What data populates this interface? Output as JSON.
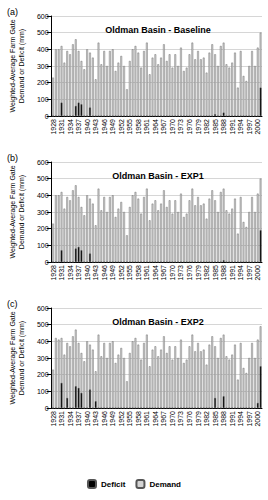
{
  "chart_data": [
    {
      "type": "bar",
      "panel": "(a)",
      "title": "Oldman Basin - Baseline",
      "ylabel": "Weighted-Average Farm Gate Demand or Deficit (mm)",
      "categories": [
        "1928",
        null,
        null,
        "1931",
        null,
        null,
        "1934",
        null,
        null,
        "1937",
        null,
        null,
        "1940",
        null,
        null,
        "1943",
        null,
        null,
        "1946",
        null,
        null,
        "1949",
        null,
        null,
        "1952",
        null,
        null,
        "1955",
        null,
        null,
        "1958",
        null,
        null,
        "1961",
        null,
        null,
        "1964",
        null,
        null,
        "1967",
        null,
        null,
        "1970",
        null,
        null,
        "1973",
        null,
        null,
        "1976",
        null,
        null,
        "1979",
        null,
        null,
        "1982",
        null,
        null,
        "1985",
        null,
        null,
        "1988",
        null,
        null,
        "1991",
        null,
        null,
        "1994",
        null,
        null,
        "1997",
        null,
        null,
        "2000",
        null
      ],
      "series": [
        {
          "name": "Deficit",
          "color": "#000000",
          "values": [
            0,
            0,
            0,
            80,
            0,
            0,
            0,
            0,
            60,
            80,
            70,
            0,
            0,
            50,
            0,
            0,
            0,
            0,
            0,
            0,
            0,
            0,
            0,
            0,
            0,
            0,
            0,
            0,
            0,
            0,
            0,
            0,
            0,
            0,
            0,
            0,
            0,
            0,
            0,
            0,
            0,
            0,
            0,
            0,
            0,
            0,
            0,
            0,
            0,
            0,
            0,
            0,
            0,
            0,
            0,
            0,
            0,
            10,
            0,
            0,
            20,
            0,
            0,
            0,
            0,
            0,
            0,
            0,
            0,
            0,
            0,
            0,
            0,
            170
          ]
        },
        {
          "name": "Demand",
          "color": "#d4d4d4",
          "values": [
            230,
            400,
            400,
            420,
            320,
            390,
            370,
            430,
            460,
            390,
            330,
            280,
            400,
            380,
            350,
            220,
            440,
            310,
            390,
            300,
            390,
            400,
            270,
            320,
            360,
            300,
            160,
            330,
            400,
            420,
            380,
            290,
            390,
            440,
            250,
            350,
            370,
            310,
            350,
            430,
            330,
            370,
            290,
            370,
            300,
            410,
            270,
            290,
            370,
            440,
            340,
            390,
            340,
            350,
            260,
            380,
            430,
            370,
            300,
            420,
            440,
            310,
            290,
            320,
            380,
            170,
            390,
            240,
            210,
            300,
            390,
            300,
            410,
            500
          ]
        }
      ],
      "ylim": [
        0,
        600
      ],
      "yticks": [
        0,
        100,
        200,
        300,
        400,
        500,
        600
      ],
      "grid": true
    },
    {
      "type": "bar",
      "panel": "(b)",
      "title": "Oldman Basin - EXP1",
      "ylabel": "Weighted-Average Farm Gate Demand or Deficit (mm)",
      "categories": [
        "1928",
        null,
        null,
        "1931",
        null,
        null,
        "1934",
        null,
        null,
        "1937",
        null,
        null,
        "1940",
        null,
        null,
        "1943",
        null,
        null,
        "1946",
        null,
        null,
        "1949",
        null,
        null,
        "1952",
        null,
        null,
        "1955",
        null,
        null,
        "1958",
        null,
        null,
        "1961",
        null,
        null,
        "1964",
        null,
        null,
        "1967",
        null,
        null,
        "1970",
        null,
        null,
        "1973",
        null,
        null,
        "1976",
        null,
        null,
        "1979",
        null,
        null,
        "1982",
        null,
        null,
        "1985",
        null,
        null,
        "1988",
        null,
        null,
        "1991",
        null,
        null,
        "1994",
        null,
        null,
        "1997",
        null,
        null,
        "2000",
        null
      ],
      "series": [
        {
          "name": "Deficit",
          "color": "#000000",
          "values": [
            0,
            0,
            0,
            70,
            0,
            0,
            0,
            0,
            80,
            90,
            70,
            0,
            0,
            50,
            0,
            0,
            0,
            0,
            0,
            0,
            0,
            0,
            0,
            0,
            0,
            0,
            0,
            0,
            0,
            0,
            0,
            0,
            0,
            0,
            0,
            0,
            0,
            0,
            0,
            0,
            0,
            0,
            0,
            0,
            0,
            0,
            0,
            0,
            0,
            0,
            0,
            0,
            0,
            0,
            0,
            0,
            0,
            0,
            0,
            0,
            10,
            0,
            0,
            0,
            0,
            0,
            0,
            0,
            0,
            0,
            0,
            0,
            0,
            190
          ]
        },
        {
          "name": "Demand",
          "color": "#d4d4d4",
          "values": [
            230,
            400,
            400,
            420,
            320,
            390,
            370,
            430,
            460,
            390,
            330,
            280,
            400,
            380,
            350,
            220,
            440,
            310,
            390,
            300,
            390,
            400,
            270,
            320,
            360,
            300,
            160,
            330,
            400,
            420,
            380,
            290,
            390,
            440,
            250,
            350,
            370,
            310,
            350,
            430,
            330,
            370,
            290,
            370,
            300,
            410,
            270,
            290,
            370,
            440,
            340,
            390,
            340,
            350,
            260,
            380,
            430,
            370,
            300,
            420,
            440,
            310,
            290,
            320,
            380,
            170,
            390,
            240,
            210,
            300,
            390,
            300,
            410,
            500
          ]
        }
      ],
      "ylim": [
        0,
        600
      ],
      "yticks": [
        0,
        100,
        200,
        300,
        400,
        500,
        600
      ],
      "grid": true
    },
    {
      "type": "bar",
      "panel": "(c)",
      "title": "Oldman Basin - EXP2",
      "ylabel": "Weighted-Average Farm Gate Demand or Deficit (mm)",
      "categories": [
        "1928",
        null,
        null,
        "1931",
        null,
        null,
        "1934",
        null,
        null,
        "1937",
        null,
        null,
        "1940",
        null,
        null,
        "1943",
        null,
        null,
        "1946",
        null,
        null,
        "1949",
        null,
        null,
        "1952",
        null,
        null,
        "1955",
        null,
        null,
        "1958",
        null,
        null,
        "1961",
        null,
        null,
        "1964",
        null,
        null,
        "1967",
        null,
        null,
        "1970",
        null,
        null,
        "1973",
        null,
        null,
        "1976",
        null,
        null,
        "1979",
        null,
        null,
        "1982",
        null,
        null,
        "1985",
        null,
        null,
        "1988",
        null,
        null,
        "1991",
        null,
        null,
        "1994",
        null,
        null,
        "1997",
        null,
        null,
        "2000",
        null
      ],
      "series": [
        {
          "name": "Deficit",
          "color": "#000000",
          "values": [
            0,
            0,
            0,
            150,
            0,
            60,
            0,
            0,
            130,
            120,
            90,
            0,
            0,
            110,
            0,
            40,
            0,
            0,
            0,
            0,
            0,
            0,
            0,
            0,
            0,
            0,
            0,
            0,
            0,
            0,
            0,
            0,
            0,
            0,
            0,
            0,
            0,
            0,
            0,
            0,
            0,
            0,
            0,
            0,
            0,
            0,
            0,
            0,
            0,
            0,
            0,
            0,
            0,
            0,
            0,
            0,
            0,
            60,
            0,
            0,
            70,
            0,
            0,
            0,
            0,
            0,
            0,
            0,
            0,
            0,
            0,
            0,
            30,
            250
          ]
        },
        {
          "name": "Demand",
          "color": "#d4d4d4",
          "values": [
            230,
            420,
            410,
            420,
            320,
            390,
            370,
            430,
            470,
            390,
            330,
            280,
            400,
            380,
            350,
            220,
            440,
            310,
            390,
            300,
            390,
            400,
            270,
            320,
            360,
            300,
            160,
            330,
            400,
            420,
            380,
            290,
            390,
            440,
            250,
            350,
            370,
            310,
            350,
            430,
            330,
            370,
            290,
            370,
            300,
            410,
            270,
            290,
            370,
            440,
            340,
            390,
            340,
            350,
            260,
            380,
            430,
            370,
            300,
            420,
            440,
            310,
            290,
            320,
            380,
            170,
            390,
            240,
            210,
            300,
            390,
            300,
            410,
            490
          ]
        }
      ],
      "ylim": [
        0,
        600
      ],
      "yticks": [
        0,
        100,
        200,
        300,
        400,
        500,
        600
      ],
      "grid": true,
      "legend": "bottom"
    }
  ]
}
